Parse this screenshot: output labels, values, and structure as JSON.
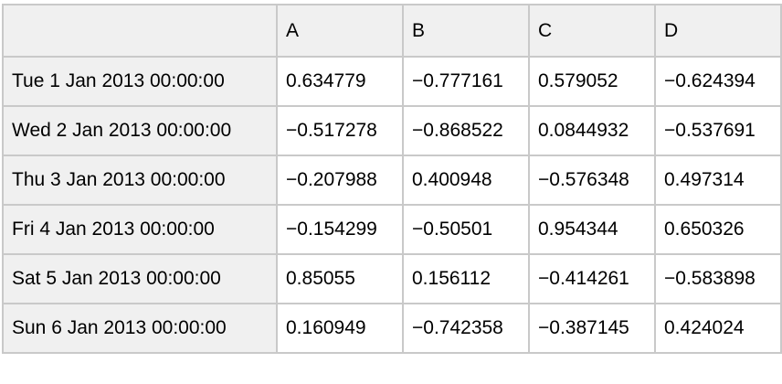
{
  "chart_data": {
    "type": "table",
    "columns": [
      "",
      "A",
      "B",
      "C",
      "D"
    ],
    "rows": [
      {
        "label": "Tue 1 Jan 2013 00:00:00",
        "values": [
          "0.634779",
          "−0.777161",
          "0.579052",
          "−0.624394"
        ]
      },
      {
        "label": "Wed 2 Jan 2013 00:00:00",
        "values": [
          "−0.517278",
          "−0.868522",
          "0.0844932",
          "−0.537691"
        ]
      },
      {
        "label": "Thu 3 Jan 2013 00:00:00",
        "values": [
          "−0.207988",
          "0.400948",
          "−0.576348",
          "0.497314"
        ]
      },
      {
        "label": "Fri 4 Jan 2013 00:00:00",
        "values": [
          "−0.154299",
          "−0.50501",
          "0.954344",
          "0.650326"
        ]
      },
      {
        "label": "Sat 5 Jan 2013 00:00:00",
        "values": [
          "0.85055",
          "0.156112",
          "−0.414261",
          "−0.583898"
        ]
      },
      {
        "label": "Sun 6 Jan 2013 00:00:00",
        "values": [
          "0.160949",
          "−0.742358",
          "−0.387145",
          "0.424024"
        ]
      }
    ],
    "colors": {
      "header_bg": "#f0f0f0",
      "cell_bg": "#ffffff",
      "border": "#c9c9c9",
      "text": "#000000"
    }
  }
}
